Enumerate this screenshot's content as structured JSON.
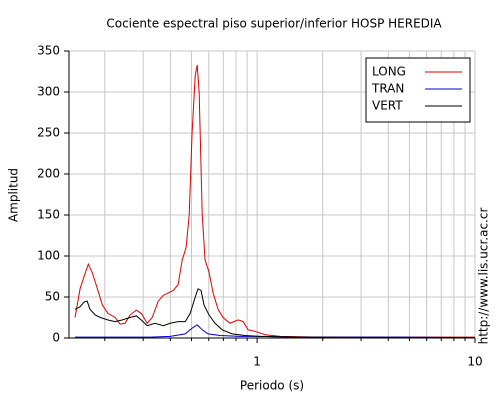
{
  "chart_data": {
    "type": "line",
    "title": "Cociente espectral piso superior/inferior  HOSP HEREDIA",
    "x_label": "Periodo (s)",
    "y_label": "Amplitud",
    "side_note": "http://www.lis.ucr.ac.cr",
    "xscale": "log",
    "xlim": [
      0.137,
      10
    ],
    "xticks": [
      1,
      10
    ],
    "xminor": [
      0.2,
      0.3,
      0.4,
      0.5,
      0.6,
      0.7,
      0.8,
      0.9,
      2,
      3,
      4,
      5,
      6,
      7,
      8,
      9
    ],
    "ylim": [
      0,
      350
    ],
    "yticks": [
      0,
      50,
      100,
      150,
      200,
      250,
      300,
      350
    ],
    "grid": true,
    "legend": "upper right",
    "series": [
      {
        "name": "LONG",
        "color": "#dd0000",
        "x": [
          0.146,
          0.154,
          0.163,
          0.168,
          0.175,
          0.185,
          0.195,
          0.207,
          0.223,
          0.235,
          0.248,
          0.261,
          0.279,
          0.294,
          0.313,
          0.33,
          0.352,
          0.371,
          0.391,
          0.412,
          0.434,
          0.453,
          0.472,
          0.488,
          0.503,
          0.52,
          0.531,
          0.542,
          0.56,
          0.577,
          0.602,
          0.628,
          0.662,
          0.698,
          0.751,
          0.818,
          0.863,
          0.91,
          0.979,
          1.09,
          1.28,
          1.95,
          4.53,
          10
        ],
        "values": [
          25,
          60,
          80,
          90,
          80,
          60,
          40,
          30,
          25,
          17,
          18,
          28,
          34,
          30,
          18,
          25,
          45,
          52,
          55,
          58,
          65,
          95,
          110,
          150,
          250,
          320,
          333,
          300,
          150,
          95,
          80,
          55,
          35,
          25,
          18,
          22,
          20,
          10,
          8,
          4,
          2,
          1,
          1,
          1
        ]
      },
      {
        "name": "TRAN",
        "color": "#0000cc",
        "x": [
          0.146,
          0.323,
          0.399,
          0.468,
          0.503,
          0.531,
          0.56,
          0.596,
          0.676,
          0.836,
          1.03,
          1.57,
          4.53,
          10
        ],
        "values": [
          1,
          1,
          2,
          5,
          12,
          16,
          10,
          5,
          3,
          2,
          2,
          1,
          1,
          0.5
        ]
      },
      {
        "name": "VERT",
        "color": "#000000",
        "x": [
          0.146,
          0.154,
          0.161,
          0.166,
          0.171,
          0.181,
          0.191,
          0.207,
          0.223,
          0.24,
          0.261,
          0.279,
          0.294,
          0.313,
          0.34,
          0.371,
          0.399,
          0.434,
          0.468,
          0.493,
          0.52,
          0.536,
          0.553,
          0.571,
          0.602,
          0.641,
          0.691,
          0.768,
          0.881,
          1.03,
          1.57,
          4.53,
          10
        ],
        "values": [
          35,
          38,
          44,
          45,
          35,
          28,
          25,
          22,
          20,
          22,
          25,
          27,
          22,
          15,
          18,
          15,
          18,
          20,
          20,
          30,
          50,
          60,
          58,
          40,
          28,
          18,
          10,
          5,
          3,
          2,
          1,
          0.5,
          0.5
        ]
      }
    ]
  }
}
